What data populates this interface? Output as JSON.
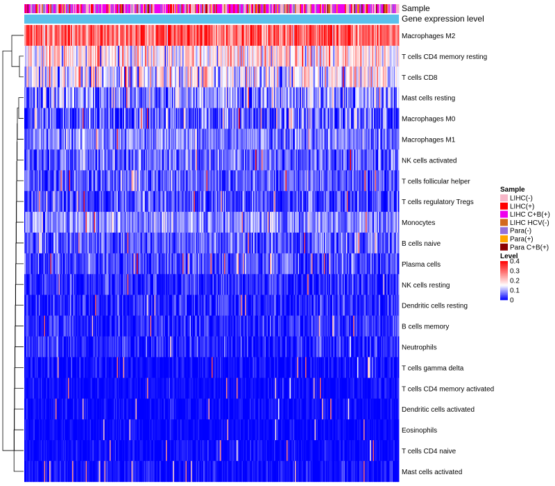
{
  "chart_data": {
    "type": "heatmap",
    "annotation_tracks": [
      "Sample",
      "Gene expression level"
    ],
    "rows": [
      {
        "name": "Macrophages M2",
        "mean": 0.3,
        "sd": 0.07
      },
      {
        "name": "T cells CD4 memory resting",
        "mean": 0.17,
        "sd": 0.07
      },
      {
        "name": "T cells CD8",
        "mean": 0.15,
        "sd": 0.07
      },
      {
        "name": "Mast cells resting",
        "mean": 0.08,
        "sd": 0.06
      },
      {
        "name": "Macrophages M0",
        "mean": 0.05,
        "sd": 0.06
      },
      {
        "name": "Macrophages M1",
        "mean": 0.07,
        "sd": 0.04
      },
      {
        "name": "NK cells activated",
        "mean": 0.06,
        "sd": 0.04
      },
      {
        "name": "T cells follicular helper",
        "mean": 0.05,
        "sd": 0.04
      },
      {
        "name": "T cells regulatory  Tregs",
        "mean": 0.04,
        "sd": 0.04
      },
      {
        "name": "Monocytes",
        "mean": 0.08,
        "sd": 0.04
      },
      {
        "name": "B cells naive",
        "mean": 0.05,
        "sd": 0.04
      },
      {
        "name": "Plasma cells",
        "mean": 0.04,
        "sd": 0.04
      },
      {
        "name": "NK cells resting",
        "mean": 0.02,
        "sd": 0.03
      },
      {
        "name": "Dendritic cells resting",
        "mean": 0.02,
        "sd": 0.03
      },
      {
        "name": "B cells memory",
        "mean": 0.02,
        "sd": 0.03
      },
      {
        "name": "Neutrophils",
        "mean": 0.02,
        "sd": 0.03
      },
      {
        "name": "T cells gamma delta",
        "mean": 0.005,
        "sd": 0.02
      },
      {
        "name": "T cells CD4 memory activated",
        "mean": 0.004,
        "sd": 0.015
      },
      {
        "name": "Dendritic cells activated",
        "mean": 0.004,
        "sd": 0.015
      },
      {
        "name": "Eosinophils",
        "mean": 0.003,
        "sd": 0.012
      },
      {
        "name": "T cells CD4 naive",
        "mean": 0.004,
        "sd": 0.015
      },
      {
        "name": "Mast cells activated",
        "mean": 0.005,
        "sd": 0.02
      }
    ],
    "color_scale": {
      "min": 0,
      "max": 0.4,
      "low": "#0000ff",
      "mid": "#ffffff",
      "high": "#ff0000",
      "midpoint": 0.15
    },
    "legend_sample": {
      "title": "Sample",
      "items": [
        {
          "label": "LIHC(-)",
          "color": "#f7b6c8"
        },
        {
          "label": "LIHC(+)",
          "color": "#ff0000"
        },
        {
          "label": "LIHC C+B(+)",
          "color": "#ee00ee"
        },
        {
          "label": "LIHC HCV(-)",
          "color": "#d2691e"
        },
        {
          "label": "Para(-)",
          "color": "#9370db"
        },
        {
          "label": "Para(+)",
          "color": "#ffa500"
        },
        {
          "label": "Para C+B(+)",
          "color": "#8b0000"
        }
      ]
    },
    "legend_level": {
      "title": "Level",
      "ticks": [
        "0.4",
        "0.3",
        "0.2",
        "0.1",
        "0"
      ],
      "tick_values": [
        0.4,
        0.3,
        0.2,
        0.1,
        0
      ]
    },
    "expression_track_color": "#5bc0eb",
    "sample_weights": [
      0.28,
      0.12,
      0.35,
      0.05,
      0.15,
      0.03,
      0.02
    ]
  }
}
